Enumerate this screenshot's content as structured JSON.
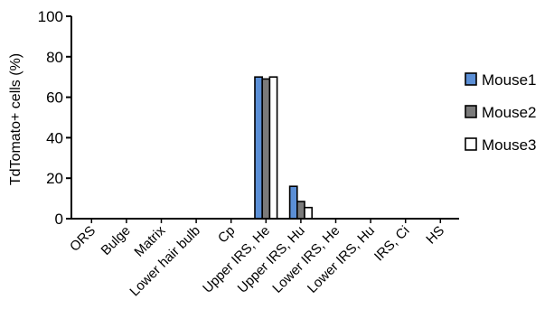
{
  "chart_data": {
    "type": "bar",
    "title": "",
    "xlabel": "",
    "ylabel": "TdTomato+ cells (%)",
    "ylim": [
      0,
      100
    ],
    "yticks": [
      "0",
      "20",
      "40",
      "60",
      "80",
      "100"
    ],
    "categories": [
      "ORS",
      "Bulge",
      "Matrix",
      "Lower hair bulb",
      "Cp",
      "Upper IRS, He",
      "Upper IRS, Hu",
      "Lower IRS, He",
      "Lower IRS, Hu",
      "IRS, Ci",
      "HS"
    ],
    "series": [
      {
        "name": "Mouse1",
        "color": "#5b8fd6",
        "values": [
          0,
          0,
          0,
          0,
          0,
          70,
          16,
          0,
          0,
          0,
          0
        ]
      },
      {
        "name": "Mouse2",
        "color": "#7a7a7a",
        "values": [
          0,
          0,
          0,
          0,
          0,
          69,
          8.5,
          0,
          0,
          0,
          0
        ]
      },
      {
        "name": "Mouse3",
        "color": "#ffffff",
        "values": [
          0,
          0,
          0,
          0,
          0,
          70,
          5.5,
          0,
          0,
          0,
          0
        ]
      }
    ],
    "legend_position": "right",
    "grid": false
  }
}
